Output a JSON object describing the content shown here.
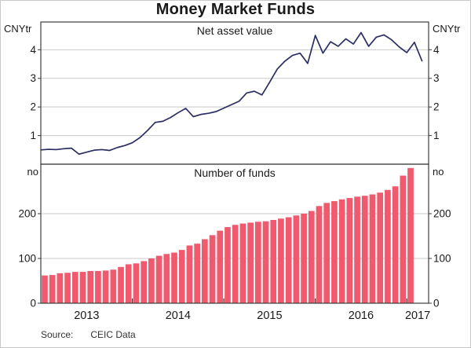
{
  "title": "Money Market Funds",
  "source_label": "Source:",
  "source_value": "CEIC Data",
  "x_axis": {
    "year_labels": [
      "2013",
      "2014",
      "2015",
      "2016",
      "2017"
    ]
  },
  "colors": {
    "line": "#2b2e63",
    "bar": "#f05a6e",
    "grid": "#c9c9c9",
    "axis": "#3d3d3d",
    "text": "#1a1a1a"
  },
  "chart_data": [
    {
      "type": "line",
      "panel": "top",
      "title": "Net asset value",
      "unit_left": "CNYtr",
      "unit_right": "CNYtr",
      "x_start": "2013-01",
      "frequency": "monthly",
      "ylim": [
        0,
        4.97
      ],
      "yticks": [
        1,
        2,
        3,
        4
      ],
      "grid": "horizontal",
      "series": [
        {
          "name": "Net asset value (CNYtr)",
          "color": "#2b2e63",
          "values": [
            0.5,
            0.52,
            0.51,
            0.54,
            0.56,
            0.35,
            0.42,
            0.49,
            0.51,
            0.48,
            0.58,
            0.65,
            0.75,
            0.93,
            1.18,
            1.46,
            1.5,
            1.63,
            1.8,
            1.95,
            1.66,
            1.74,
            1.78,
            1.84,
            1.96,
            2.08,
            2.2,
            2.49,
            2.55,
            2.42,
            2.86,
            3.32,
            3.6,
            3.8,
            3.88,
            3.52,
            4.5,
            3.88,
            4.28,
            4.12,
            4.38,
            4.2,
            4.6,
            4.12,
            4.44,
            4.52,
            4.35,
            4.1,
            3.9,
            4.26,
            3.61
          ]
        }
      ]
    },
    {
      "type": "bar",
      "panel": "bottom",
      "title": "Number of funds",
      "unit_left": "no",
      "unit_right": "no",
      "x_start": "2013-01",
      "frequency": "monthly",
      "ylim": [
        0,
        310
      ],
      "yticks": [
        0,
        100,
        200
      ],
      "grid": "horizontal",
      "series": [
        {
          "name": "Number of funds",
          "color": "#f05a6e",
          "values": [
            62,
            63,
            67,
            68,
            70,
            70,
            72,
            72,
            73,
            75,
            81,
            87,
            89,
            94,
            100,
            106,
            110,
            113,
            119,
            129,
            133,
            143,
            152,
            162,
            170,
            175,
            178,
            180,
            182,
            183,
            186,
            189,
            192,
            196,
            200,
            206,
            217,
            224,
            228,
            232,
            235,
            238,
            240,
            243,
            247,
            253,
            261,
            285,
            302
          ]
        }
      ]
    }
  ]
}
